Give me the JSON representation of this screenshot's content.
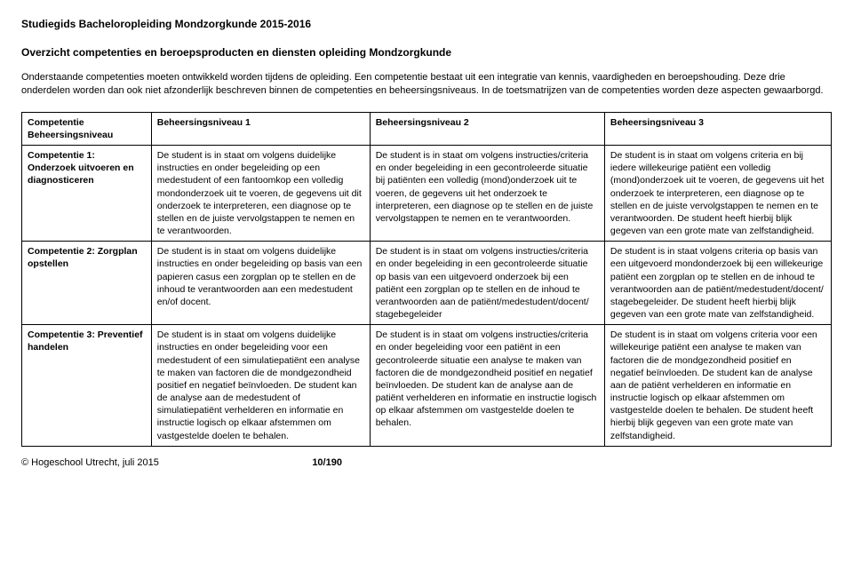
{
  "header": {
    "title": "Studiegids Bacheloropleiding Mondzorgkunde 2015-2016"
  },
  "subtitle": "Overzicht competenties en beroepsproducten en diensten opleiding Mondzorgkunde",
  "intro": "Onderstaande competenties moeten ontwikkeld worden tijdens de opleiding. Een competentie bestaat uit een integratie van kennis, vaardigheden en beroepshouding. Deze drie onderdelen worden dan ook niet afzonderlijk beschreven binnen de competenties en beheersingsniveaus. In de toetsmatrijzen van de competenties worden deze aspecten gewaarborgd.",
  "table": {
    "header": {
      "c0": "Competentie Beheersingsniveau",
      "c1": "Beheersingsniveau 1",
      "c2": "Beheersingsniveau 2",
      "c3": "Beheersingsniveau 3"
    },
    "rows": [
      {
        "label": "Competentie 1: Onderzoek uitvoeren en diagnosticeren",
        "c1": "De student is in staat om volgens duidelijke instructies en onder begeleiding op een medestudent of een fantoomkop een volledig mondonderzoek uit te voeren, de gegevens uit dit onderzoek te interpreteren, een diagnose op te stellen en de juiste vervolgstappen te nemen en te verantwoorden.",
        "c2": "De student is in staat om volgens instructies/criteria en onder begeleiding in een gecontroleerde situatie bij patiënten een volledig (mond)onderzoek uit te voeren, de gegevens uit het onderzoek te interpreteren, een diagnose op te stellen en de juiste vervolgstappen te nemen en te verantwoorden.",
        "c3": "De student is in staat om volgens criteria en bij iedere willekeurige patiënt een volledig (mond)onderzoek uit te voeren, de gegevens uit het onderzoek te interpreteren, een diagnose op te stellen en de juiste vervolgstappen te nemen en te verantwoorden.\nDe student heeft hierbij blijk gegeven van een grote mate van zelfstandigheid."
      },
      {
        "label": "Competentie 2: Zorgplan opstellen",
        "c1": "De student is in staat om volgens duidelijke instructies en onder begeleiding op basis van een papieren casus een zorgplan op te stellen en de inhoud te verantwoorden aan een medestudent en/of docent.",
        "c2": "De student is in staat om volgens instructies/criteria en onder begeleiding in een gecontroleerde situatie op basis van een uitgevoerd onderzoek bij een patiënt een zorgplan op te stellen en de inhoud te verantwoorden aan de patiënt/medestudent/docent/ stagebegeleider",
        "c3": "De student is in staat volgens criteria op basis van een uitgevoerd mondonderzoek bij een willekeurige patiënt een zorgplan op te stellen en de inhoud te verantwoorden aan de patiënt/medestudent/docent/ stagebegeleider.\nDe student heeft hierbij blijk gegeven van een grote mate van zelfstandigheid."
      },
      {
        "label": "Competentie 3: Preventief handelen",
        "c1": "De student is in staat om volgens duidelijke instructies en onder begeleiding voor een medestudent of een simulatiepatiënt een analyse te maken van factoren die de mondgezondheid positief en negatief beïnvloeden. De student kan de analyse aan de medestudent of simulatiepatiënt verhelderen en informatie en instructie logisch op elkaar afstemmen om vastgestelde doelen te behalen.",
        "c2": "De student is in staat om volgens instructies/criteria en onder begeleiding voor een patiënt in een gecontroleerde situatie een analyse te maken van factoren die de mondgezondheid positief en negatief beïnvloeden. De student kan de analyse aan de patiënt verhelderen en informatie en instructie logisch op elkaar afstemmen om vastgestelde doelen te behalen.",
        "c3": "De student is in staat om volgens criteria voor een willekeurige patiënt een analyse te maken van factoren die de mondgezondheid positief en negatief beïnvloeden. De student kan de analyse aan de patiënt verhelderen en informatie en instructie logisch op elkaar afstemmen om vastgestelde doelen te behalen.\nDe student heeft hierbij blijk gegeven van een grote mate van zelfstandigheid."
      }
    ]
  },
  "footer": {
    "copyright": "© Hogeschool Utrecht, juli 2015",
    "page": "10/190"
  }
}
